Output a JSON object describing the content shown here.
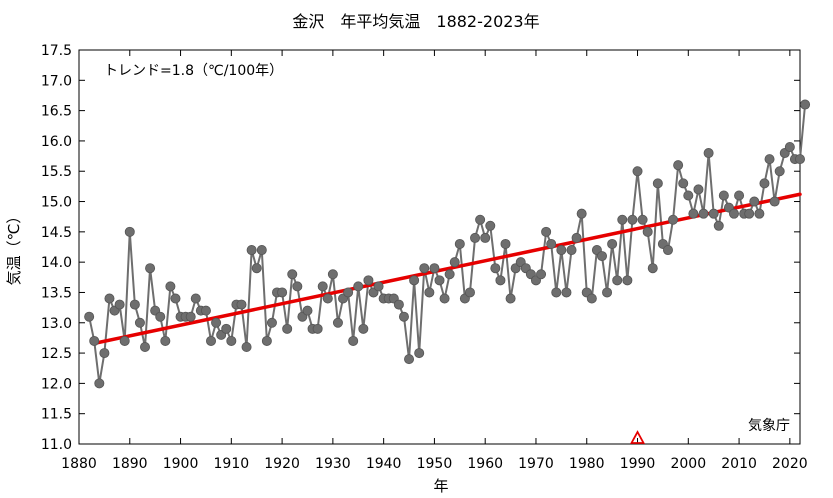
{
  "chart_data": {
    "type": "line",
    "title": "金沢　年平均気温　1882-2023年",
    "xlabel": "年",
    "ylabel": "気温（℃）",
    "annotation": "トレンド=1.8（℃/100年）",
    "source": "気象庁",
    "xlim": [
      1880,
      2023
    ],
    "ylim": [
      11.0,
      17.5
    ],
    "x_ticks": [
      "1880",
      "1890",
      "1900",
      "1910",
      "1920",
      "1930",
      "1940",
      "1950",
      "1960",
      "1970",
      "1980",
      "1990",
      "2000",
      "2010",
      "2020"
    ],
    "y_ticks": [
      "11.0",
      "11.5",
      "12.0",
      "12.5",
      "13.0",
      "13.5",
      "14.0",
      "14.5",
      "15.0",
      "15.5",
      "16.0",
      "16.5",
      "17.0",
      "17.5"
    ],
    "grid": false,
    "series": [
      {
        "color": "#6e6e6e",
        "x": [
          1882,
          1883,
          1884,
          1885,
          1886,
          1887,
          1888,
          1889,
          1890,
          1891,
          1892,
          1893,
          1894,
          1895,
          1896,
          1897,
          1898,
          1899,
          1900,
          1901,
          1902,
          1903,
          1904,
          1905,
          1906,
          1907,
          1908,
          1909,
          1910,
          1911,
          1912,
          1913,
          1914,
          1915,
          1916,
          1917,
          1918,
          1919,
          1920,
          1921,
          1922,
          1923,
          1924,
          1925,
          1926,
          1927,
          1928,
          1929,
          1930,
          1931,
          1932,
          1933,
          1934,
          1935,
          1936,
          1937,
          1938,
          1939,
          1940,
          1941,
          1942,
          1943,
          1944,
          1945,
          1946,
          1947,
          1948,
          1949,
          1950,
          1951,
          1952,
          1953,
          1954,
          1955,
          1956,
          1957,
          1958,
          1959,
          1960,
          1961,
          1962,
          1963,
          1964,
          1965,
          1966,
          1967,
          1968,
          1969,
          1970,
          1971,
          1972,
          1973,
          1974,
          1975,
          1976,
          1977,
          1978,
          1979,
          1980,
          1981,
          1982,
          1983,
          1984,
          1985,
          1986,
          1987,
          1988,
          1989,
          1990,
          1991,
          1992,
          1993,
          1994,
          1995,
          1996,
          1997,
          1998,
          1999,
          2000,
          2001,
          2002,
          2003,
          2004,
          2005,
          2006,
          2007,
          2008,
          2009,
          2010,
          2011,
          2012,
          2013,
          2014,
          2015,
          2016,
          2017,
          2018,
          2019,
          2020,
          2021,
          2022,
          2023
        ],
        "y": [
          13.1,
          12.7,
          12.0,
          12.5,
          13.4,
          13.2,
          13.3,
          12.7,
          14.5,
          13.3,
          13.0,
          12.6,
          13.9,
          13.2,
          13.1,
          12.7,
          13.6,
          13.4,
          13.1,
          13.1,
          13.1,
          13.4,
          13.2,
          13.2,
          12.7,
          13.0,
          12.8,
          12.9,
          12.7,
          13.3,
          13.3,
          12.6,
          14.2,
          13.9,
          14.2,
          12.7,
          13.0,
          13.5,
          13.5,
          12.9,
          13.8,
          13.6,
          13.1,
          13.2,
          12.9,
          12.9,
          13.6,
          13.4,
          13.8,
          13.0,
          13.4,
          13.5,
          12.7,
          13.6,
          12.9,
          13.7,
          13.5,
          13.6,
          13.4,
          13.4,
          13.4,
          13.3,
          13.1,
          12.4,
          13.7,
          12.5,
          13.9,
          13.5,
          13.9,
          13.7,
          13.4,
          13.8,
          14.0,
          14.3,
          13.4,
          13.5,
          14.4,
          14.7,
          14.4,
          14.6,
          13.9,
          13.7,
          14.3,
          13.4,
          13.9,
          14.0,
          13.9,
          13.8,
          13.7,
          13.8,
          14.5,
          14.3,
          13.5,
          14.2,
          13.5,
          14.2,
          14.4,
          14.8,
          13.5,
          13.4,
          14.2,
          14.1,
          13.5,
          14.3,
          13.7,
          14.7,
          13.7,
          14.7,
          15.5,
          14.7,
          14.5,
          13.9,
          15.3,
          14.3,
          14.2,
          14.7,
          15.6,
          15.3,
          15.1,
          14.8,
          15.2,
          14.8,
          15.8,
          14.8,
          14.6,
          15.1,
          14.9,
          14.8,
          15.1,
          14.8,
          14.8,
          15.0,
          14.8,
          15.3,
          15.7,
          15.0,
          15.5,
          15.8,
          15.9,
          15.7,
          15.7,
          16.6
        ]
      }
    ],
    "trend": {
      "color": "#e60000",
      "x": [
        1883,
        2022
      ],
      "y": [
        12.66,
        15.12
      ]
    },
    "marker": {
      "color": "#e60000",
      "x": 1990
    }
  }
}
